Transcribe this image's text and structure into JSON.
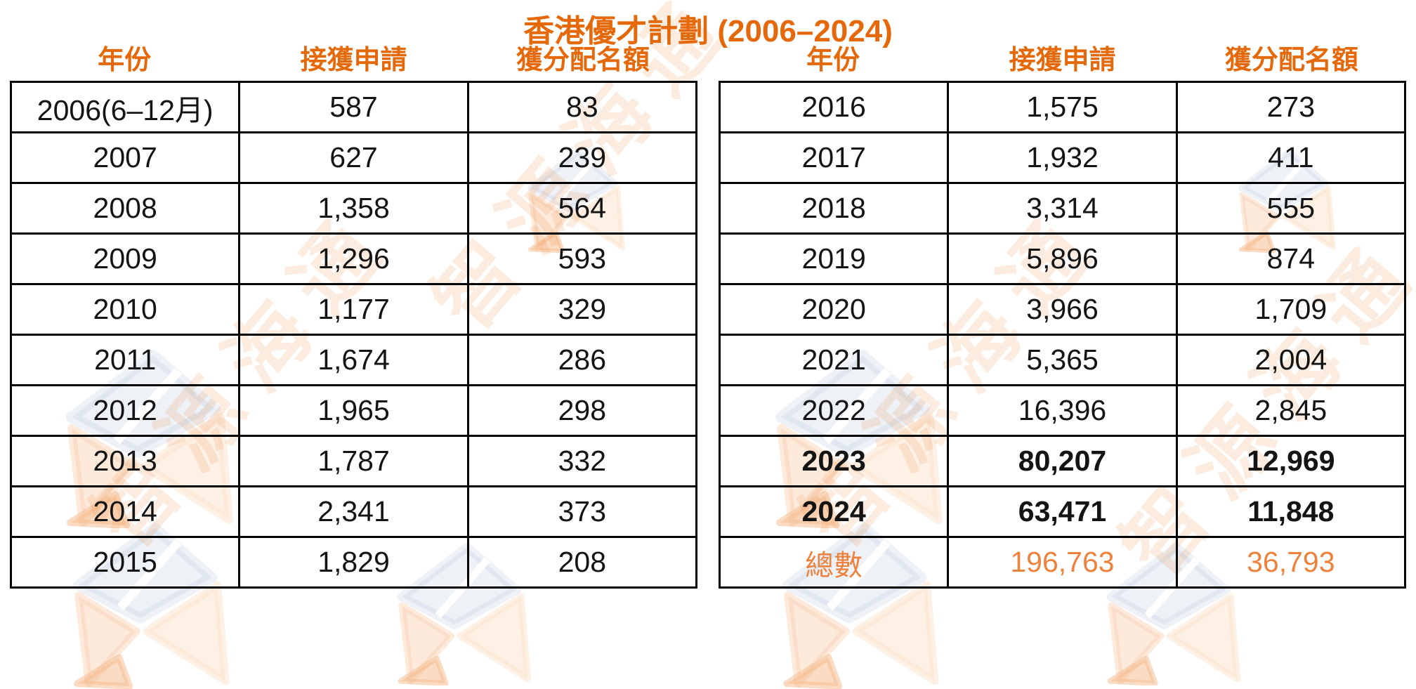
{
  "title": "香港優才計劃 (2006–2024)",
  "columns": {
    "year": "年份",
    "applications": "接獲申請",
    "quota": "獲分配名額"
  },
  "colors": {
    "accent_orange": "#E5690B",
    "total_orange": "#EC823C",
    "border_black": "#000000",
    "watermark_orange": "rgba(238,138,64,0.16)",
    "watermark_blue": "#8FA5C6"
  },
  "watermark": {
    "text": "智源海通"
  },
  "tables": [
    {
      "rows": [
        {
          "year": "2006(6–12月)",
          "applications": "587",
          "quota": "83"
        },
        {
          "year": "2007",
          "applications": "627",
          "quota": "239"
        },
        {
          "year": "2008",
          "applications": "1,358",
          "quota": "564"
        },
        {
          "year": "2009",
          "applications": "1,296",
          "quota": "593"
        },
        {
          "year": "2010",
          "applications": "1,177",
          "quota": "329"
        },
        {
          "year": "2011",
          "applications": "1,674",
          "quota": "286"
        },
        {
          "year": "2012",
          "applications": "1,965",
          "quota": "298"
        },
        {
          "year": "2013",
          "applications": "1,787",
          "quota": "332"
        },
        {
          "year": "2014",
          "applications": "2,341",
          "quota": "373"
        },
        {
          "year": "2015",
          "applications": "1,829",
          "quota": "208"
        }
      ]
    },
    {
      "rows": [
        {
          "year": "2016",
          "applications": "1,575",
          "quota": "273"
        },
        {
          "year": "2017",
          "applications": "1,932",
          "quota": "411"
        },
        {
          "year": "2018",
          "applications": "3,314",
          "quota": "555"
        },
        {
          "year": "2019",
          "applications": "5,896",
          "quota": "874"
        },
        {
          "year": "2020",
          "applications": "3,966",
          "quota": "1,709"
        },
        {
          "year": "2021",
          "applications": "5,365",
          "quota": "2,004"
        },
        {
          "year": "2022",
          "applications": "16,396",
          "quota": "2,845"
        },
        {
          "year": "2023",
          "applications": "80,207",
          "quota": "12,969",
          "bold": true
        },
        {
          "year": "2024",
          "applications": "63,471",
          "quota": "11,848",
          "bold": true
        },
        {
          "year": "總數",
          "applications": "196,763",
          "quota": "36,793",
          "total": true
        }
      ]
    }
  ]
}
